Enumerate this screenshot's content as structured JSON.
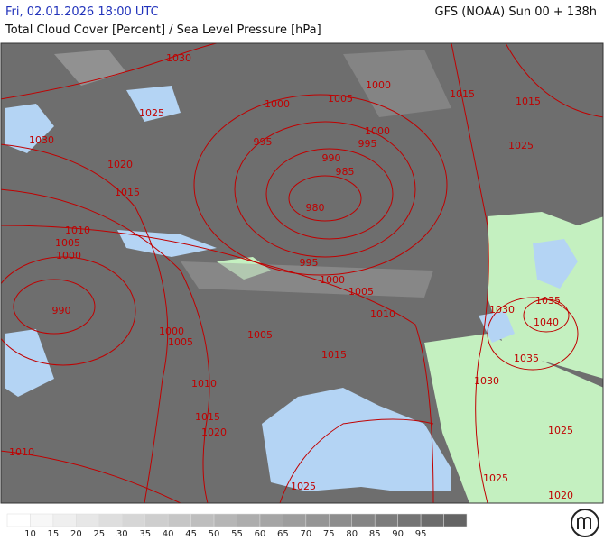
{
  "header": {
    "left": "Fri, 02.01.2026 18:00 UTC",
    "right": "GFS (NOAA) Sun 00 + 138h",
    "subtitle": "Total Cloud Cover [Percent] / Sea Level Pressure [hPa]"
  },
  "isobar_labels": [
    1030,
    1025,
    1030,
    1020,
    1015,
    1010,
    1005,
    1000,
    990,
    1000,
    1005,
    1000,
    1015,
    1015,
    995,
    1000,
    995,
    990,
    985,
    980,
    995,
    1000,
    1005,
    1010,
    1000,
    1005,
    1005,
    1015,
    1010,
    1015,
    1020,
    1010,
    1025,
    1025,
    1030,
    1035,
    1040,
    1035,
    1030,
    1025,
    1025,
    1020
  ],
  "legend": {
    "labels": [
      10,
      15,
      20,
      25,
      30,
      35,
      40,
      45,
      50,
      55,
      60,
      65,
      70,
      75,
      80,
      85,
      90,
      95
    ]
  }
}
